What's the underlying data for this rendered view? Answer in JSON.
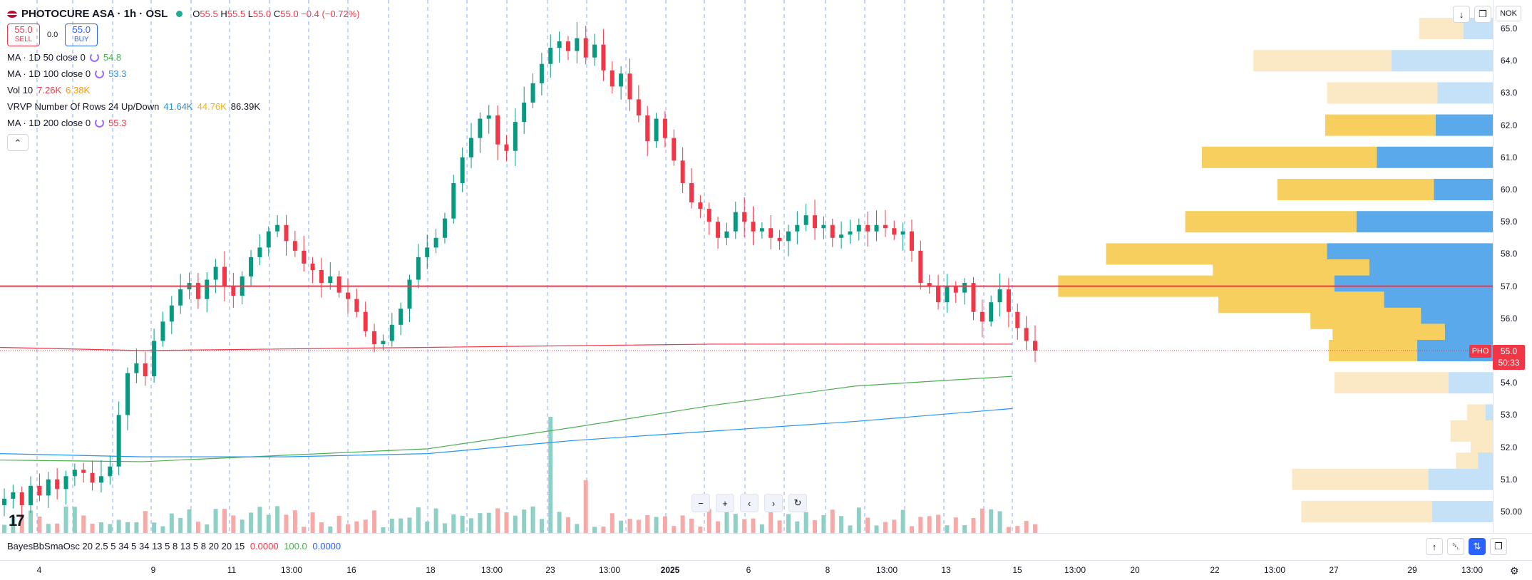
{
  "header": {
    "symbol_title": "PHOTOCURE ASA · 1h · OSL",
    "ohlc": {
      "o_label": "O",
      "o": "55.5",
      "h_label": "H",
      "h": "55.5",
      "l_label": "L",
      "l": "55.0",
      "c_label": "C",
      "c": "55.0",
      "change": "−0.4 (−0.72%)"
    },
    "sell_price": "55.0",
    "sell_label": "SELL",
    "spread": "0.0",
    "buy_price": "55.0",
    "buy_label": "BUY"
  },
  "indicators": [
    {
      "name": "MA · 1D 50 close 0",
      "values": [
        "54.8"
      ],
      "colors": [
        "#4caf50"
      ]
    },
    {
      "name": "MA · 1D 100 close 0",
      "values": [
        "53.3"
      ],
      "colors": [
        "#2196f3"
      ]
    },
    {
      "name": "Vol 10",
      "values": [
        "7.26K",
        "6.38K"
      ],
      "colors": [
        "#f23645",
        "#ff9800"
      ]
    },
    {
      "name": "VRVP Number Of Rows 24 Up/Down",
      "values": [
        "41.64K",
        "44.76K",
        "86.39K"
      ],
      "colors": [
        "#2196f3",
        "#f5b400",
        "#131722"
      ]
    },
    {
      "name": "MA · 1D 200 close 0",
      "values": [
        "55.3"
      ],
      "colors": [
        "#f23645"
      ]
    }
  ],
  "price_axis": {
    "currency": "NOK",
    "labels": [
      "65.0",
      "64.0",
      "63.0",
      "62.0",
      "61.0",
      "60.0",
      "59.0",
      "58.0",
      "57.0",
      "56.0",
      "55.0",
      "54.0",
      "53.0",
      "52.0",
      "51.0",
      "50.00"
    ],
    "last_price": "55.0",
    "countdown": "50:33",
    "symbol_tag": "PHO"
  },
  "time_axis": {
    "labels": [
      {
        "text": "4",
        "bold": false
      },
      {
        "text": "9",
        "bold": false
      },
      {
        "text": "11",
        "bold": false
      },
      {
        "text": "13:00",
        "bold": false
      },
      {
        "text": "16",
        "bold": false
      },
      {
        "text": "18",
        "bold": false
      },
      {
        "text": "13:00",
        "bold": false
      },
      {
        "text": "23",
        "bold": false
      },
      {
        "text": "13:00",
        "bold": false
      },
      {
        "text": "2025",
        "bold": true
      },
      {
        "text": "6",
        "bold": false
      },
      {
        "text": "8",
        "bold": false
      },
      {
        "text": "13:00",
        "bold": false
      },
      {
        "text": "13",
        "bold": false
      },
      {
        "text": "15",
        "bold": false
      },
      {
        "text": "13:00",
        "bold": false
      },
      {
        "text": "20",
        "bold": false
      },
      {
        "text": "22",
        "bold": false
      },
      {
        "text": "13:00",
        "bold": false
      },
      {
        "text": "27",
        "bold": false
      },
      {
        "text": "29",
        "bold": false
      },
      {
        "text": "13:00",
        "bold": false
      }
    ]
  },
  "oscillator": {
    "name": "BayesBbSmaOsc 20 2.5 5 34 5 34 13 5 8 13 5 8 20 20 15",
    "values": [
      "0.0000",
      "100.0",
      "0.0000"
    ],
    "colors": [
      "#f23645",
      "#4caf50",
      "#2962ff"
    ]
  },
  "icons": {
    "flag": "norway-flag-icon",
    "collapse": "chevron-up-icon",
    "zoom_out": "minus-icon",
    "zoom_in": "plus-icon",
    "scroll_left": "chevron-left-icon",
    "scroll_right": "chevron-right-icon",
    "reset": "reset-icon",
    "logo": "tradingview-logo",
    "settings": "gear-icon"
  },
  "chart_data": {
    "type": "candlestick",
    "period": "1h",
    "horizontal_line": 57.0,
    "ylim": [
      49.5,
      65.3
    ],
    "candles_close": [
      50.4,
      50.6,
      50.2,
      50.8,
      50.5,
      51.0,
      50.7,
      51.1,
      51.3,
      51.2,
      50.9,
      51.1,
      51.4,
      53.0,
      54.3,
      54.6,
      54.2,
      55.3,
      55.9,
      56.4,
      56.9,
      57.1,
      56.6,
      57.2,
      57.6,
      57.0,
      56.7,
      57.3,
      57.9,
      58.2,
      58.7,
      58.9,
      58.4,
      58.1,
      57.7,
      57.5,
      57.1,
      57.3,
      56.8,
      56.6,
      56.2,
      55.6,
      55.2,
      55.3,
      55.8,
      56.3,
      57.2,
      57.9,
      58.2,
      58.5,
      59.1,
      60.2,
      61.0,
      61.6,
      62.2,
      62.3,
      61.4,
      61.2,
      62.1,
      62.7,
      63.3,
      63.9,
      64.4,
      64.6,
      64.3,
      64.7,
      64.1,
      64.5,
      63.7,
      63.2,
      63.6,
      62.8,
      62.3,
      61.5,
      62.2,
      61.6,
      60.9,
      60.2,
      59.6,
      59.4,
      59.0,
      58.5,
      58.7,
      59.3,
      59.0,
      58.7,
      58.8,
      58.5,
      58.4,
      58.7,
      58.9,
      59.2,
      58.8,
      58.9,
      58.5,
      58.6,
      58.7,
      58.9,
      58.7,
      58.9,
      58.8,
      58.6,
      58.7,
      58.1,
      57.1,
      57.0,
      56.5,
      57.0,
      56.8,
      57.1,
      56.2,
      55.9,
      56.5,
      56.9,
      56.2,
      55.7,
      55.3,
      55.0
    ],
    "volume_profile": [
      {
        "price": 65.0,
        "up": 2400,
        "down": 1600
      },
      {
        "price": 64.0,
        "up": 7500,
        "down": 5500
      },
      {
        "price": 63.0,
        "up": 6000,
        "down": 3000
      },
      {
        "price": 62.0,
        "up": 6000,
        "down": 3100
      },
      {
        "price": 61.0,
        "up": 9500,
        "down": 6300
      },
      {
        "price": 60.0,
        "up": 8500,
        "down": 3200
      },
      {
        "price": 59.0,
        "up": 9300,
        "down": 7400
      },
      {
        "price": 58.0,
        "up": 12000,
        "down": 9000
      },
      {
        "price": 57.5,
        "up": 8500,
        "down": 6700
      },
      {
        "price": 57.0,
        "up": 15000,
        "down": 8600
      },
      {
        "price": 56.5,
        "up": 9000,
        "down": 5900
      },
      {
        "price": 56.0,
        "up": 6000,
        "down": 3900
      },
      {
        "price": 55.5,
        "up": 6100,
        "down": 2600
      },
      {
        "price": 55.0,
        "up": 4800,
        "down": 4100
      },
      {
        "price": 54.0,
        "up": 6200,
        "down": 2400
      },
      {
        "price": 53.0,
        "up": 1000,
        "down": 400
      },
      {
        "price": 52.5,
        "up": 2300,
        "down": 0
      },
      {
        "price": 52.0,
        "up": 1200,
        "down": 0
      },
      {
        "price": 51.5,
        "up": 1200,
        "down": 800
      },
      {
        "price": 51.0,
        "up": 7400,
        "down": 3500
      },
      {
        "price": 50.0,
        "up": 7100,
        "down": 3300
      }
    ]
  }
}
